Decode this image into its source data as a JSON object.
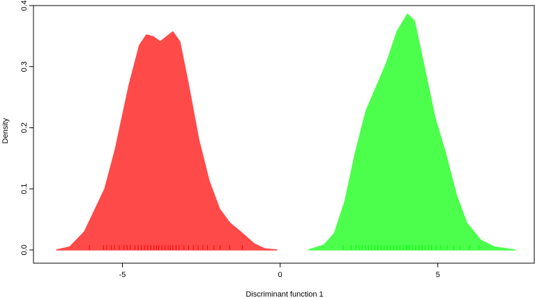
{
  "chart_data": {
    "type": "density",
    "xlabel": "Discriminant function 1",
    "ylabel": "Density",
    "xlim": [
      -7.82,
      8.06
    ],
    "ylim": [
      -0.0217,
      0.4
    ],
    "xticks": [
      -5,
      0,
      5
    ],
    "yticks": [
      {
        "value": 0,
        "label": "0.0"
      },
      0.1,
      0.2,
      0.3,
      0.4
    ],
    "series": [
      {
        "color": "#ff4a4a",
        "rug_color": "#ff0000",
        "x": [
          -7.1,
          -6.67,
          -6.2,
          -5.56,
          -5.23,
          -4.79,
          -4.46,
          -4.24,
          -4.02,
          -3.8,
          -3.58,
          -3.4,
          -3.18,
          -2.91,
          -2.58,
          -2.25,
          -1.92,
          -1.59,
          -1.26,
          -0.82,
          -0.49,
          -0.09
        ],
        "values": [
          0,
          0.005,
          0.03,
          0.1,
          0.164,
          0.27,
          0.335,
          0.352,
          0.349,
          0.341,
          0.35,
          0.357,
          0.341,
          0.272,
          0.181,
          0.113,
          0.067,
          0.044,
          0.03,
          0.01,
          0.002,
          0
        ],
        "rug": [
          -6.05,
          -5.6,
          -5.5,
          -5.35,
          -5.25,
          -5.1,
          -4.95,
          -4.85,
          -4.75,
          -4.6,
          -4.5,
          -4.4,
          -4.3,
          -4.2,
          -4.1,
          -4.0,
          -3.92,
          -3.85,
          -3.75,
          -3.65,
          -3.55,
          -3.48,
          -3.4,
          -3.3,
          -3.2,
          -3.05,
          -2.9,
          -2.75,
          -2.6,
          -2.45,
          -2.3,
          -2.1,
          -1.9,
          -1.6,
          -1.2
        ]
      },
      {
        "color": "#4cff4c",
        "rug_color": "#00ff00",
        "x": [
          0.9,
          1.39,
          1.72,
          2.05,
          2.38,
          2.72,
          3.05,
          3.38,
          3.71,
          4.04,
          4.26,
          4.59,
          4.92,
          5.25,
          5.59,
          5.92,
          6.36,
          6.8,
          7.46
        ],
        "values": [
          0,
          0.008,
          0.027,
          0.079,
          0.158,
          0.227,
          0.267,
          0.307,
          0.358,
          0.386,
          0.375,
          0.295,
          0.215,
          0.158,
          0.09,
          0.044,
          0.016,
          0.005,
          0
        ],
        "rug": [
          2.0,
          2.25,
          2.4,
          2.5,
          2.6,
          2.7,
          2.8,
          2.9,
          3.0,
          3.1,
          3.2,
          3.3,
          3.4,
          3.5,
          3.6,
          3.7,
          3.8,
          3.9,
          4.0,
          4.05,
          4.1,
          4.2,
          4.3,
          4.4,
          4.5,
          4.6,
          4.7,
          4.8,
          4.95,
          5.1,
          5.3,
          5.5,
          5.7,
          6.0,
          6.3
        ]
      }
    ]
  }
}
